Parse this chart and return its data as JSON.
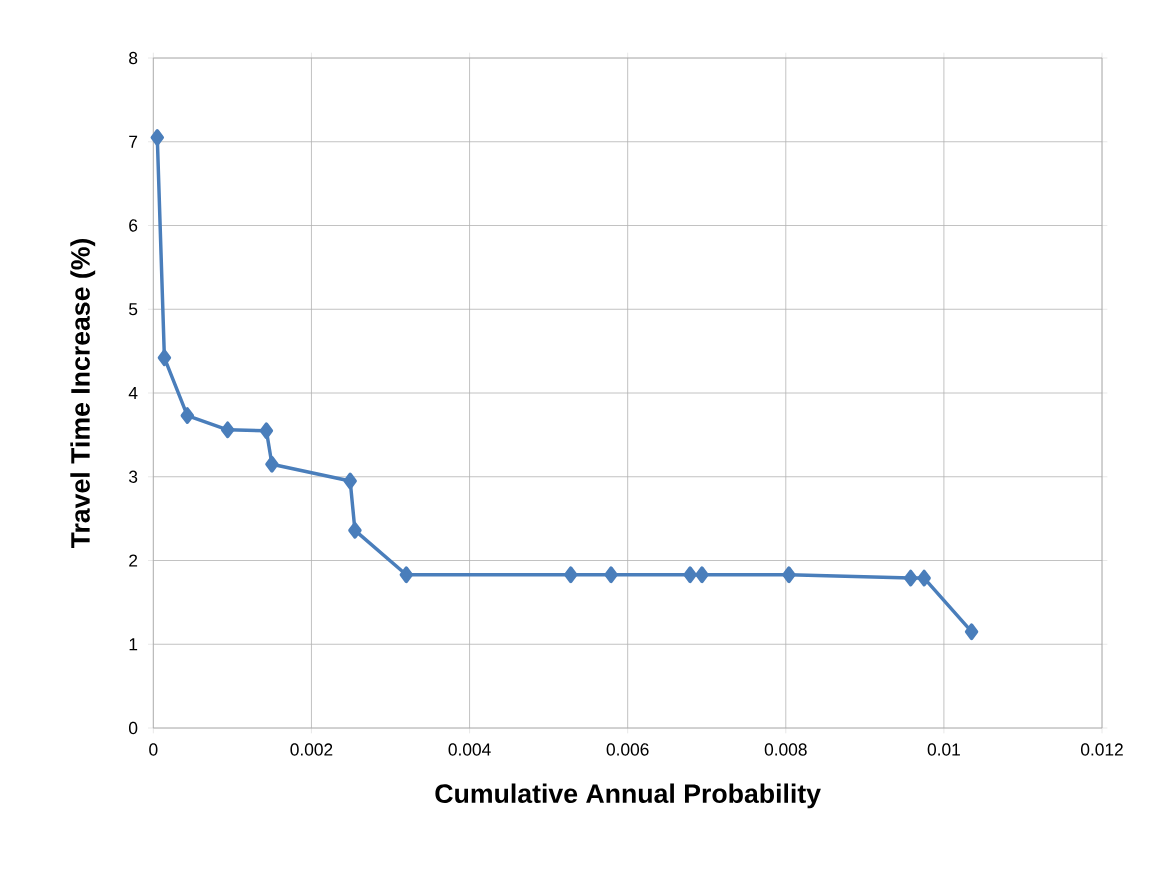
{
  "chart_data": {
    "type": "line",
    "xlabel": "Cumulative Annual Probability",
    "ylabel": "Travel Time Increase (%)",
    "x": [
      5e-05,
      0.00014,
      0.00043,
      0.00094,
      0.00143,
      0.0015,
      0.00249,
      0.00255,
      0.0032,
      0.00528,
      0.00579,
      0.00679,
      0.00694,
      0.00804,
      0.00958,
      0.00975,
      0.01035
    ],
    "series": [
      {
        "color": "#4a7ebb",
        "values": [
          7.05,
          4.42,
          3.73,
          3.56,
          3.55,
          3.15,
          2.95,
          2.36,
          1.83,
          1.83,
          1.83,
          1.83,
          1.83,
          1.83,
          1.79,
          1.79,
          1.15
        ]
      }
    ],
    "xlim": [
      0,
      0.012
    ],
    "xticks": [
      0,
      0.002,
      0.004,
      0.006,
      0.008,
      0.01,
      0.012
    ],
    "ylim": [
      0,
      8
    ],
    "yticks": [
      0,
      1,
      2,
      3,
      4,
      5,
      6,
      7,
      8
    ],
    "grid": true,
    "marker": "diamond",
    "line_style": "solid"
  }
}
